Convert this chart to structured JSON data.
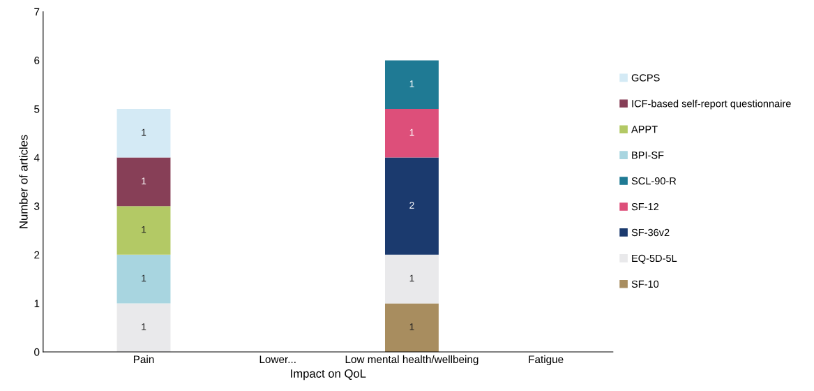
{
  "chart_data": {
    "type": "bar",
    "stacked": true,
    "xlabel": "Impact on QoL",
    "ylabel": "Number of articles",
    "categories": [
      "Pain",
      "Lower...",
      "Low mental health/wellbeing",
      "Fatigue"
    ],
    "series": [
      {
        "name": "SF-10",
        "color": "#a88d5f",
        "values": [
          null,
          null,
          1,
          null
        ]
      },
      {
        "name": "EQ-5D-5L",
        "color": "#e9e9eb",
        "values": [
          1,
          null,
          1,
          null
        ]
      },
      {
        "name": "SF-36v2",
        "color": "#1b3a6e",
        "values": [
          null,
          null,
          2,
          null
        ]
      },
      {
        "name": "SF-12",
        "color": "#dd4f7a",
        "values": [
          null,
          null,
          1,
          null
        ]
      },
      {
        "name": "SCL-90-R",
        "color": "#1f7a94",
        "values": [
          null,
          null,
          1,
          null
        ]
      },
      {
        "name": "BPI-SF",
        "color": "#a8d5e0",
        "values": [
          1,
          null,
          null,
          null
        ]
      },
      {
        "name": "APPT",
        "color": "#b3c965",
        "values": [
          1,
          null,
          null,
          null
        ]
      },
      {
        "name": "ICF-based self-report questionnaire",
        "color": "#873f57",
        "values": [
          1,
          null,
          null,
          null
        ]
      },
      {
        "name": "GCPS",
        "color": "#d4eaf5",
        "values": [
          1,
          null,
          null,
          null
        ]
      }
    ],
    "ylim": [
      0,
      7
    ],
    "yticks": [
      0,
      1,
      2,
      3,
      4,
      5,
      6,
      7
    ],
    "data_labels": true,
    "legend": "right",
    "grid": false
  }
}
